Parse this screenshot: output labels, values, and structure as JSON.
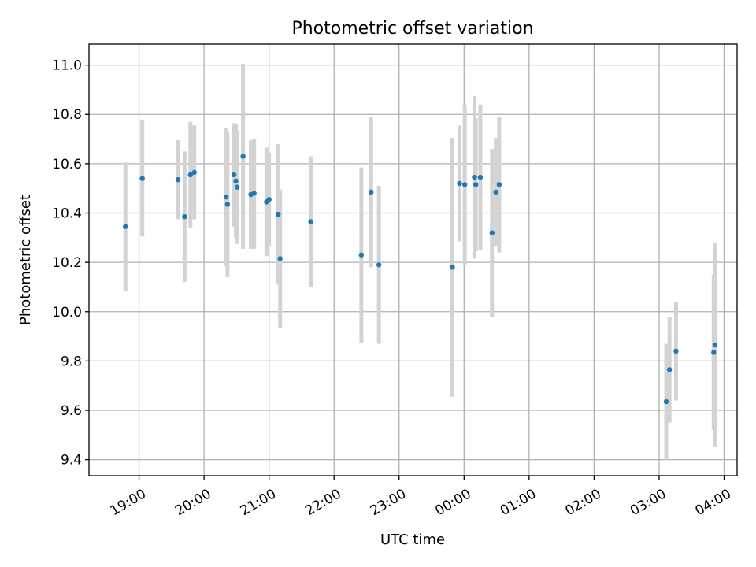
{
  "chart_data": {
    "type": "scatter",
    "title": "Photometric offset variation",
    "xlabel": "UTC time",
    "ylabel": "Photometric offset",
    "grid": true,
    "x_unit": "hours since 18:00 UTC (values above 6 are after midnight)",
    "xlim": [
      0.23,
      10.2
    ],
    "ylim": [
      9.335,
      11.085
    ],
    "x_ticks": [
      {
        "value": 1,
        "label": "19:00"
      },
      {
        "value": 2,
        "label": "20:00"
      },
      {
        "value": 3,
        "label": "21:00"
      },
      {
        "value": 4,
        "label": "22:00"
      },
      {
        "value": 5,
        "label": "23:00"
      },
      {
        "value": 6,
        "label": "00:00"
      },
      {
        "value": 7,
        "label": "01:00"
      },
      {
        "value": 8,
        "label": "02:00"
      },
      {
        "value": 9,
        "label": "03:00"
      },
      {
        "value": 10,
        "label": "04:00"
      }
    ],
    "y_ticks": [
      {
        "value": 9.4,
        "label": "9.4"
      },
      {
        "value": 9.6,
        "label": "9.6"
      },
      {
        "value": 9.8,
        "label": "9.8"
      },
      {
        "value": 10.0,
        "label": "10.0"
      },
      {
        "value": 10.2,
        "label": "10.2"
      },
      {
        "value": 10.4,
        "label": "10.4"
      },
      {
        "value": 10.6,
        "label": "10.6"
      },
      {
        "value": 10.8,
        "label": "10.8"
      },
      {
        "value": 11.0,
        "label": "11.0"
      }
    ],
    "point_color": "#1f77b4",
    "errorbar_color": "#d3d3d3",
    "points": [
      {
        "x": 0.79,
        "y": 10.345,
        "lo": 10.085,
        "hi": 10.605
      },
      {
        "x": 1.05,
        "y": 10.54,
        "lo": 10.305,
        "hi": 10.775
      },
      {
        "x": 1.6,
        "y": 10.535,
        "lo": 10.375,
        "hi": 10.695
      },
      {
        "x": 1.7,
        "y": 10.385,
        "lo": 10.12,
        "hi": 10.65
      },
      {
        "x": 1.79,
        "y": 10.555,
        "lo": 10.34,
        "hi": 10.77
      },
      {
        "x": 1.85,
        "y": 10.565,
        "lo": 10.375,
        "hi": 10.755
      },
      {
        "x": 2.34,
        "y": 10.465,
        "lo": 10.185,
        "hi": 10.745
      },
      {
        "x": 2.36,
        "y": 10.435,
        "lo": 10.14,
        "hi": 10.73
      },
      {
        "x": 2.46,
        "y": 10.555,
        "lo": 10.345,
        "hi": 10.765
      },
      {
        "x": 2.49,
        "y": 10.53,
        "lo": 10.3,
        "hi": 10.76
      },
      {
        "x": 2.51,
        "y": 10.505,
        "lo": 10.275,
        "hi": 10.735
      },
      {
        "x": 2.6,
        "y": 10.63,
        "lo": 10.255,
        "hi": 11.005
      },
      {
        "x": 2.72,
        "y": 10.475,
        "lo": 10.255,
        "hi": 10.695
      },
      {
        "x": 2.77,
        "y": 10.48,
        "lo": 10.255,
        "hi": 10.7
      },
      {
        "x": 2.96,
        "y": 10.445,
        "lo": 10.225,
        "hi": 10.665
      },
      {
        "x": 3.0,
        "y": 10.455,
        "lo": 10.265,
        "hi": 10.645
      },
      {
        "x": 3.14,
        "y": 10.395,
        "lo": 10.11,
        "hi": 10.68
      },
      {
        "x": 3.17,
        "y": 10.215,
        "lo": 9.935,
        "hi": 10.495
      },
      {
        "x": 3.64,
        "y": 10.365,
        "lo": 10.1,
        "hi": 10.63
      },
      {
        "x": 4.42,
        "y": 10.23,
        "lo": 9.875,
        "hi": 10.585
      },
      {
        "x": 4.57,
        "y": 10.485,
        "lo": 10.18,
        "hi": 10.79
      },
      {
        "x": 4.69,
        "y": 10.19,
        "lo": 9.87,
        "hi": 10.51
      },
      {
        "x": 5.82,
        "y": 10.18,
        "lo": 9.655,
        "hi": 10.705
      },
      {
        "x": 5.93,
        "y": 10.52,
        "lo": 10.285,
        "hi": 10.755
      },
      {
        "x": 6.01,
        "y": 10.515,
        "lo": 10.19,
        "hi": 10.84
      },
      {
        "x": 6.16,
        "y": 10.545,
        "lo": 10.215,
        "hi": 10.875
      },
      {
        "x": 6.18,
        "y": 10.515,
        "lo": 10.245,
        "hi": 10.785
      },
      {
        "x": 6.25,
        "y": 10.545,
        "lo": 10.25,
        "hi": 10.84
      },
      {
        "x": 6.43,
        "y": 10.32,
        "lo": 9.98,
        "hi": 10.66
      },
      {
        "x": 6.49,
        "y": 10.485,
        "lo": 10.265,
        "hi": 10.705
      },
      {
        "x": 6.54,
        "y": 10.515,
        "lo": 10.24,
        "hi": 10.79
      },
      {
        "x": 9.11,
        "y": 9.635,
        "lo": 9.4,
        "hi": 9.87
      },
      {
        "x": 9.16,
        "y": 9.765,
        "lo": 9.55,
        "hi": 9.98
      },
      {
        "x": 9.26,
        "y": 9.84,
        "lo": 9.64,
        "hi": 10.04
      },
      {
        "x": 9.84,
        "y": 9.835,
        "lo": 9.52,
        "hi": 10.15
      },
      {
        "x": 9.86,
        "y": 9.865,
        "lo": 9.45,
        "hi": 10.28
      }
    ]
  }
}
